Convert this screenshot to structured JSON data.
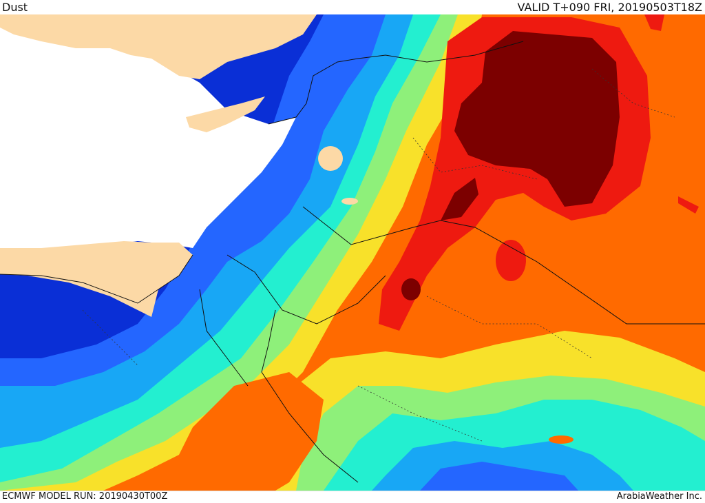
{
  "header": {
    "product_title": "Dust",
    "valid_time": "VALID T+090 FRI, 20190503T18Z"
  },
  "footer": {
    "model_run": "ECMWF MODEL RUN: 20190430T00Z",
    "credit": "ArabiaWeather Inc."
  },
  "map": {
    "field": "dust",
    "colors": {
      "sea": "#ffffff",
      "land_outside_domain": "#fcd9a6",
      "level_1_darkblue": "#0a2fd6",
      "level_2_blue": "#2466ff",
      "level_3_lightblue": "#18a7f5",
      "level_4_cyan": "#23efd0",
      "level_5_green": "#8ef07a",
      "level_6_yellow": "#f8e12a",
      "level_7_orange": "#ff6a00",
      "level_8_red": "#ee1a10",
      "level_9_darkred": "#7c0000"
    }
  }
}
